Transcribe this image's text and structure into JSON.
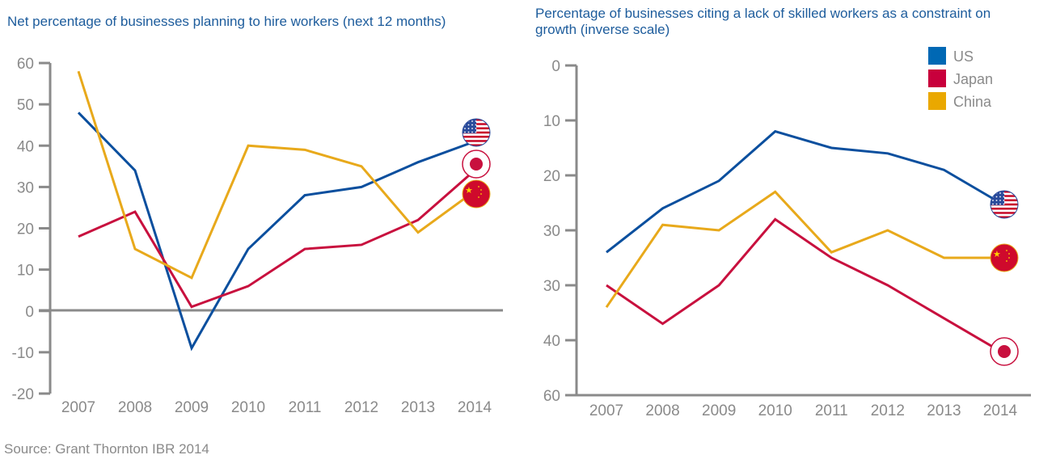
{
  "source": "Source: Grant Thornton IBR 2014",
  "colors": {
    "US": "#0b4f9e",
    "Japan": "#c8103e",
    "China": "#e8a91b",
    "axis": "#8a8a8a",
    "title": "#1d5c9c"
  },
  "legend": {
    "items": [
      {
        "label": "US",
        "color": "#0068b4"
      },
      {
        "label": "Japan",
        "color": "#c8003c"
      },
      {
        "label": "China",
        "color": "#eaa800"
      }
    ]
  },
  "chart_data": [
    {
      "type": "line",
      "title": "Net percentage of businesses planning to hire workers (next 12 months)",
      "categories": [
        "2007",
        "2008",
        "2009",
        "2010",
        "2011",
        "2012",
        "2013",
        "2014"
      ],
      "ylim": [
        -20,
        60
      ],
      "yticks": [
        "60",
        "50",
        "40",
        "30",
        "20",
        "10",
        "0",
        "-10",
        "-20"
      ],
      "grid": false,
      "end_markers": "country flags",
      "series": [
        {
          "name": "US",
          "values": [
            48,
            34,
            -9,
            15,
            28,
            30,
            36,
            41
          ]
        },
        {
          "name": "Japan",
          "values": [
            18,
            24,
            1,
            6,
            15,
            16,
            22,
            34
          ]
        },
        {
          "name": "China",
          "values": [
            58,
            15,
            8,
            40,
            39,
            35,
            19,
            29
          ]
        }
      ]
    },
    {
      "type": "line",
      "title": "Percentage of businesses citing a lack of skilled workers as a constraint on growth (inverse scale)",
      "categories": [
        "2007",
        "2008",
        "2009",
        "2010",
        "2011",
        "2012",
        "2013",
        "2014"
      ],
      "ylim": [
        0,
        60
      ],
      "inverted": true,
      "yticks": [
        "0",
        "10",
        "20",
        "30",
        "30",
        "40",
        "60"
      ],
      "grid": false,
      "legend_position": "top-right",
      "end_markers": "country flags",
      "series": [
        {
          "name": "US",
          "values": [
            34,
            26,
            21,
            12,
            15,
            16,
            19,
            25
          ]
        },
        {
          "name": "Japan",
          "values": [
            40,
            47,
            40,
            28,
            35,
            40,
            46,
            52
          ]
        },
        {
          "name": "China",
          "values": [
            44,
            29,
            30,
            23,
            34,
            30,
            35,
            35
          ]
        }
      ]
    }
  ]
}
